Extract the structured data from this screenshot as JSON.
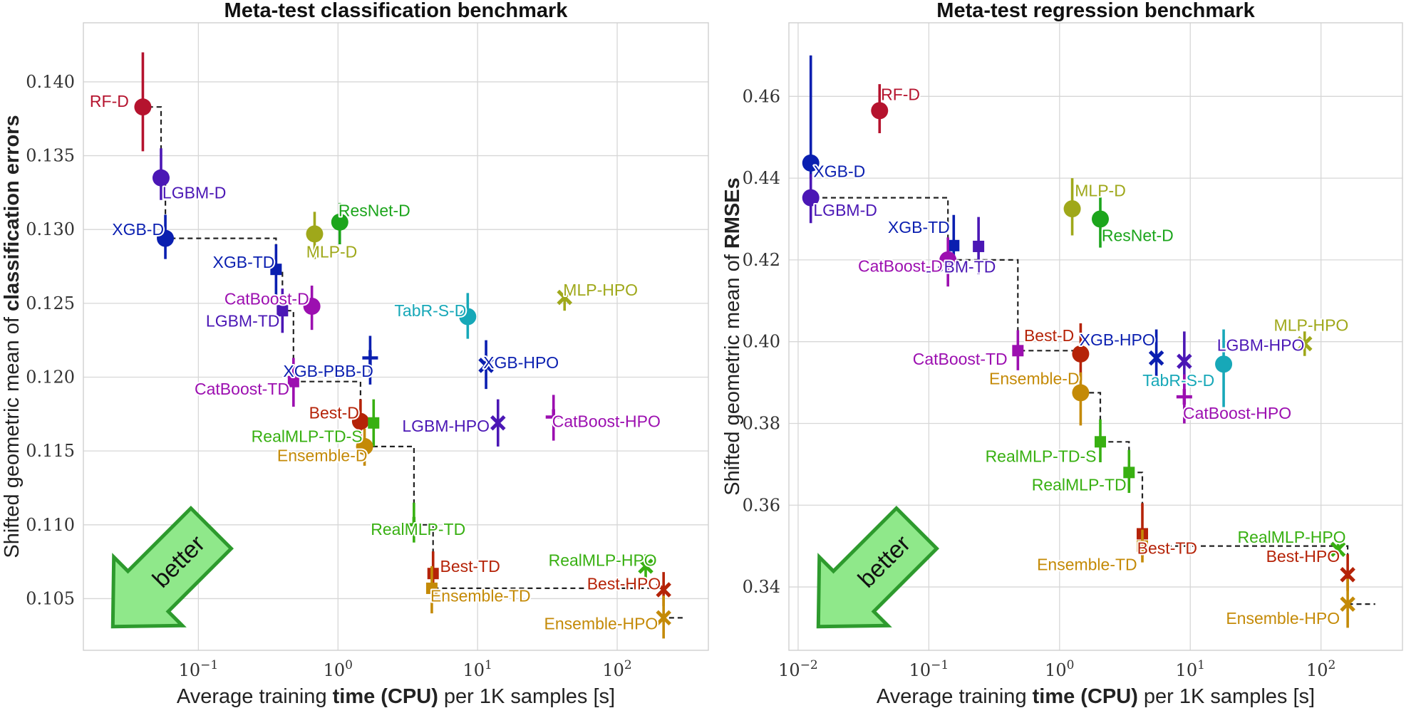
{
  "chart_data": [
    {
      "type": "scatter",
      "title": "Meta-test classification benchmark",
      "xlabel_parts": [
        "Average training ",
        "time (CPU)",
        " per 1K samples [s]"
      ],
      "ylabel_parts": [
        "Shifted geometric mean of ",
        "classification errors"
      ],
      "xscale": "log",
      "xlim": [
        0.015,
        450
      ],
      "ylim": [
        0.1015,
        0.144
      ],
      "xticks": [
        {
          "v": 0.1,
          "base": "10",
          "exp": "−1"
        },
        {
          "v": 1,
          "base": "10",
          "exp": "0"
        },
        {
          "v": 10,
          "base": "10",
          "exp": "1"
        },
        {
          "v": 100,
          "base": "10",
          "exp": "2"
        }
      ],
      "yticks": [
        {
          "v": 0.105,
          "label": "0.105"
        },
        {
          "v": 0.11,
          "label": "0.110"
        },
        {
          "v": 0.115,
          "label": "0.115"
        },
        {
          "v": 0.12,
          "label": "0.120"
        },
        {
          "v": 0.125,
          "label": "0.125"
        },
        {
          "v": 0.13,
          "label": "0.130"
        },
        {
          "v": 0.135,
          "label": "0.135"
        },
        {
          "v": 0.14,
          "label": "0.140"
        }
      ],
      "grid": true,
      "badge": "better",
      "points": [
        {
          "label": "RF-D",
          "x": 0.04,
          "y": 0.1383,
          "ylo": 0.1353,
          "yhi": 0.142,
          "marker": "circle",
          "color": "#b5132e",
          "la": "end",
          "lx": -0.1,
          "ly": 0.0004
        },
        {
          "label": "LGBM-D",
          "x": 0.054,
          "y": 0.1335,
          "ylo": 0.132,
          "yhi": 0.1355,
          "marker": "circle",
          "color": "#4b17b5",
          "la": "start",
          "lx": 0.01,
          "ly": -0.001
        },
        {
          "label": "XGB-D",
          "x": 0.058,
          "y": 0.1294,
          "ylo": 0.128,
          "yhi": 0.131,
          "marker": "circle",
          "color": "#0a1fb0",
          "la": "end",
          "lx": -0.01,
          "ly": 0.0006
        },
        {
          "label": "XGB-TD",
          "x": 0.36,
          "y": 0.1273,
          "ylo": 0.1255,
          "yhi": 0.129,
          "marker": "square",
          "color": "#0a1fb0",
          "la": "end",
          "lx": -0.01,
          "ly": 0.0005
        },
        {
          "label": "MLP-D",
          "x": 0.68,
          "y": 0.1297,
          "ylo": 0.128,
          "yhi": 0.1312,
          "marker": "circle",
          "color": "#9fa81a",
          "la": "start",
          "lx": -0.06,
          "ly": -0.0012
        },
        {
          "label": "ResNet-D",
          "x": 1.03,
          "y": 0.1305,
          "ylo": 0.129,
          "yhi": 0.1318,
          "marker": "circle",
          "color": "#1ca51c",
          "la": "start",
          "lx": -0.01,
          "ly": 0.0008
        },
        {
          "label": "CatBoost-D",
          "x": 0.65,
          "y": 0.1248,
          "ylo": 0.1232,
          "yhi": 0.1262,
          "marker": "circle",
          "color": "#9c0fb0",
          "la": "end",
          "lx": -0.02,
          "ly": 0.0005
        },
        {
          "label": "LGBM-TD",
          "x": 0.4,
          "y": 0.1245,
          "ylo": 0.123,
          "yhi": 0.126,
          "marker": "square",
          "color": "#4b17b5",
          "la": "end",
          "lx": -0.02,
          "ly": -0.0007
        },
        {
          "label": "TabR-S-D",
          "x": 8.5,
          "y": 0.1241,
          "ylo": 0.1226,
          "yhi": 0.1257,
          "marker": "circle",
          "color": "#17a8b8",
          "la": "end",
          "lx": -0.01,
          "ly": 0.0004
        },
        {
          "label": "MLP-HPO",
          "x": 42,
          "y": 0.1254,
          "ylo": 0.1245,
          "yhi": 0.1262,
          "marker": "x",
          "color": "#9fa81a",
          "la": "start",
          "lx": -0.01,
          "ly": 0.0005
        },
        {
          "label": "XGB-PBB-D",
          "x": 1.7,
          "y": 0.1213,
          "ylo": 0.1195,
          "yhi": 0.1228,
          "marker": "plus",
          "color": "#0a1fb0",
          "la": "middle",
          "lx": -0.3,
          "ly": -0.0009
        },
        {
          "label": "XGB-HPO",
          "x": 11.5,
          "y": 0.1208,
          "ylo": 0.1192,
          "yhi": 0.1225,
          "marker": "x",
          "color": "#0a1fb0",
          "la": "start",
          "lx": -0.02,
          "ly": 0.0002
        },
        {
          "label": "CatBoost-TD",
          "x": 0.48,
          "y": 0.1197,
          "ylo": 0.118,
          "yhi": 0.1213,
          "marker": "square",
          "color": "#9c0fb0",
          "la": "end",
          "lx": -0.03,
          "ly": -0.0005
        },
        {
          "label": "Best-D",
          "x": 1.45,
          "y": 0.117,
          "ylo": 0.1155,
          "yhi": 0.1185,
          "marker": "circle",
          "color": "#b52308",
          "la": "end",
          "lx": -0.01,
          "ly": 0.0006
        },
        {
          "label": "RealMLP-TD-S",
          "x": 1.8,
          "y": 0.1169,
          "ylo": 0.1153,
          "yhi": 0.1185,
          "marker": "square",
          "color": "#38b012",
          "la": "end",
          "lx": -0.08,
          "ly": -0.0009
        },
        {
          "label": "LGBM-HPO",
          "x": 14,
          "y": 0.1169,
          "ylo": 0.1153,
          "yhi": 0.1185,
          "marker": "x",
          "color": "#4b17b5",
          "la": "end",
          "lx": -0.06,
          "ly": -0.0002
        },
        {
          "label": "CatBoost-HPO",
          "x": 35,
          "y": 0.1173,
          "ylo": 0.1157,
          "yhi": 0.1188,
          "marker": "plus",
          "color": "#9c0fb0",
          "la": "start",
          "lx": -0.01,
          "ly": -0.0003
        },
        {
          "label": "Ensemble-D",
          "x": 1.55,
          "y": 0.1153,
          "ylo": 0.114,
          "yhi": 0.1165,
          "marker": "circle",
          "color": "#c48a07",
          "la": "end",
          "lx": 0.02,
          "ly": -0.0006
        },
        {
          "label": "RealMLP-TD",
          "x": 3.5,
          "y": 0.11,
          "ylo": 0.1088,
          "yhi": 0.1115,
          "marker": "plus",
          "color": "#38b012",
          "la": "middle",
          "lx": 0.03,
          "ly": -0.0003
        },
        {
          "label": "RealMLP-HPO",
          "x": 160,
          "y": 0.1072,
          "ylo": 0.1064,
          "yhi": 0.108,
          "marker": "x",
          "color": "#38b012",
          "la": "end",
          "lx": 0.08,
          "ly": 0.0004
        },
        {
          "label": "Best-TD",
          "x": 4.8,
          "y": 0.1067,
          "ylo": 0.1055,
          "yhi": 0.1082,
          "marker": "square",
          "color": "#b52308",
          "la": "start",
          "lx": 0.05,
          "ly": 0.0005
        },
        {
          "label": "Best-HPO",
          "x": 215,
          "y": 0.1056,
          "ylo": 0.1045,
          "yhi": 0.1068,
          "marker": "x",
          "color": "#b52308",
          "la": "end",
          "lx": -0.02,
          "ly": 0.0004
        },
        {
          "label": "Ensemble-TD",
          "x": 4.7,
          "y": 0.1057,
          "ylo": 0.104,
          "yhi": 0.1072,
          "marker": "square",
          "color": "#c48a07",
          "la": "start",
          "lx": -0.01,
          "ly": -0.0005
        },
        {
          "label": "Ensemble-HPO",
          "x": 215,
          "y": 0.1037,
          "ylo": 0.1023,
          "yhi": 0.1052,
          "marker": "x",
          "color": "#c48a07",
          "la": "end",
          "lx": -0.04,
          "ly": -0.0004
        }
      ],
      "frontier": [
        [
          0.04,
          0.142
        ],
        [
          0.04,
          0.1383
        ],
        [
          0.054,
          0.1383
        ],
        [
          0.054,
          0.1335
        ],
        [
          0.058,
          0.1335
        ],
        [
          0.058,
          0.1294
        ],
        [
          0.36,
          0.1294
        ],
        [
          0.36,
          0.1273
        ],
        [
          0.4,
          0.1273
        ],
        [
          0.4,
          0.1245
        ],
        [
          0.48,
          0.1245
        ],
        [
          0.48,
          0.1197
        ],
        [
          1.45,
          0.1197
        ],
        [
          1.45,
          0.117
        ],
        [
          1.55,
          0.117
        ],
        [
          1.55,
          0.1153
        ],
        [
          3.5,
          0.1153
        ],
        [
          3.5,
          0.11
        ],
        [
          4.8,
          0.11
        ],
        [
          4.8,
          0.1067
        ],
        [
          4.7,
          0.1067
        ],
        [
          4.7,
          0.1057
        ],
        [
          215,
          0.1057
        ],
        [
          215,
          0.1037
        ],
        [
          300,
          0.1037
        ]
      ]
    },
    {
      "type": "scatter",
      "title": "Meta-test regression benchmark",
      "xlabel_parts": [
        "Average training ",
        "time (CPU)",
        " per 1K samples [s]"
      ],
      "ylabel_parts": [
        "Shifted geometric mean of ",
        "RMSEs"
      ],
      "xscale": "log",
      "xlim": [
        0.0085,
        420
      ],
      "ylim": [
        0.3245,
        0.478
      ],
      "xticks": [
        {
          "v": 0.01,
          "base": "10",
          "exp": "−2"
        },
        {
          "v": 0.1,
          "base": "10",
          "exp": "−1"
        },
        {
          "v": 1,
          "base": "10",
          "exp": "0"
        },
        {
          "v": 10,
          "base": "10",
          "exp": "1"
        },
        {
          "v": 100,
          "base": "10",
          "exp": "2"
        }
      ],
      "yticks": [
        {
          "v": 0.34,
          "label": "0.34"
        },
        {
          "v": 0.36,
          "label": "0.36"
        },
        {
          "v": 0.38,
          "label": "0.38"
        },
        {
          "v": 0.4,
          "label": "0.40"
        },
        {
          "v": 0.42,
          "label": "0.42"
        },
        {
          "v": 0.44,
          "label": "0.44"
        },
        {
          "v": 0.46,
          "label": "0.46"
        }
      ],
      "grid": true,
      "badge": "better",
      "points": [
        {
          "label": "RF-D",
          "x": 0.042,
          "y": 0.4565,
          "ylo": 0.451,
          "yhi": 0.463,
          "marker": "circle",
          "color": "#b5132e",
          "la": "start",
          "lx": 0.01,
          "ly": 0.004
        },
        {
          "label": "XGB-D",
          "x": 0.0125,
          "y": 0.4437,
          "ylo": 0.44,
          "yhi": 0.47,
          "marker": "circle",
          "color": "#0a1fb0",
          "la": "start",
          "lx": 0.02,
          "ly": -0.002
        },
        {
          "label": "LGBM-D",
          "x": 0.0125,
          "y": 0.4352,
          "ylo": 0.429,
          "yhi": 0.441,
          "marker": "circle",
          "color": "#4b17b5",
          "la": "start",
          "lx": 0.02,
          "ly": -0.003
        },
        {
          "label": "MLP-D",
          "x": 1.25,
          "y": 0.4325,
          "ylo": 0.426,
          "yhi": 0.44,
          "marker": "circle",
          "color": "#9fa81a",
          "la": "start",
          "lx": 0.02,
          "ly": 0.0045
        },
        {
          "label": "ResNet-D",
          "x": 2.05,
          "y": 0.43,
          "ylo": 0.423,
          "yhi": 0.4355,
          "marker": "circle",
          "color": "#1ca51c",
          "la": "start",
          "lx": 0.01,
          "ly": -0.004
        },
        {
          "label": "XGB-TD",
          "x": 0.155,
          "y": 0.4235,
          "ylo": 0.419,
          "yhi": 0.431,
          "marker": "square",
          "color": "#0a1fb0",
          "la": "end",
          "lx": -0.03,
          "ly": 0.0045
        },
        {
          "label": "LGBM-TD",
          "x": 0.24,
          "y": 0.4233,
          "ylo": 0.4165,
          "yhi": 0.4305,
          "marker": "square",
          "color": "#4b17b5",
          "la": "middle",
          "lx": -0.15,
          "ly": -0.005
        },
        {
          "label": "CatBoost-D",
          "x": 0.14,
          "y": 0.42,
          "ylo": 0.4135,
          "yhi": 0.4255,
          "marker": "circle",
          "color": "#9c0fb0",
          "la": "end",
          "lx": -0.04,
          "ly": -0.0015
        },
        {
          "label": "Best-D",
          "x": 1.45,
          "y": 0.397,
          "ylo": 0.3905,
          "yhi": 0.4045,
          "marker": "circle",
          "color": "#b52308",
          "la": "end",
          "lx": -0.05,
          "ly": 0.0045
        },
        {
          "label": "XGB-HPO",
          "x": 5.5,
          "y": 0.396,
          "ylo": 0.389,
          "yhi": 0.403,
          "marker": "x",
          "color": "#0a1fb0",
          "la": "end",
          "lx": -0.01,
          "ly": 0.0045
        },
        {
          "label": "CatBoost-TD",
          "x": 0.48,
          "y": 0.3978,
          "ylo": 0.393,
          "yhi": 0.4028,
          "marker": "square",
          "color": "#9c0fb0",
          "la": "end",
          "lx": -0.08,
          "ly": -0.002
        },
        {
          "label": "MLP-HPO",
          "x": 75,
          "y": 0.3995,
          "ylo": 0.3965,
          "yhi": 0.4025,
          "marker": "x",
          "color": "#9fa81a",
          "la": "middle",
          "lx": 0.05,
          "ly": 0.0045
        },
        {
          "label": "LGBM-HPO",
          "x": 9.0,
          "y": 0.3952,
          "ylo": 0.388,
          "yhi": 0.4025,
          "marker": "x",
          "color": "#4b17b5",
          "la": "start",
          "lx": 0.25,
          "ly": 0.004
        },
        {
          "label": "TabR-S-D",
          "x": 18,
          "y": 0.3945,
          "ylo": 0.384,
          "yhi": 0.403,
          "marker": "circle",
          "color": "#17a8b8",
          "la": "end",
          "lx": -0.07,
          "ly": -0.004
        },
        {
          "label": "CatBoost-HPO",
          "x": 9.0,
          "y": 0.3865,
          "ylo": 0.38,
          "yhi": 0.392,
          "marker": "plus",
          "color": "#9c0fb0",
          "la": "start",
          "lx": -0.01,
          "ly": -0.004
        },
        {
          "label": "Ensemble-D",
          "x": 1.45,
          "y": 0.3875,
          "ylo": 0.3795,
          "yhi": 0.3925,
          "marker": "circle",
          "color": "#c48a07",
          "la": "end",
          "lx": -0.01,
          "ly": 0.0035
        },
        {
          "label": "RealMLP-TD-S",
          "x": 2.05,
          "y": 0.3755,
          "ylo": 0.3705,
          "yhi": 0.381,
          "marker": "square",
          "color": "#38b012",
          "la": "end",
          "lx": -0.03,
          "ly": -0.0035
        },
        {
          "label": "RealMLP-TD",
          "x": 3.4,
          "y": 0.368,
          "ylo": 0.363,
          "yhi": 0.3735,
          "marker": "square",
          "color": "#38b012",
          "la": "end",
          "lx": -0.02,
          "ly": -0.003
        },
        {
          "label": "Best-TD",
          "x": 4.3,
          "y": 0.353,
          "ylo": 0.3475,
          "yhi": 0.3605,
          "marker": "square",
          "color": "#b52308",
          "la": "start",
          "lx": -0.04,
          "ly": -0.0035
        },
        {
          "label": "RealMLP-HPO",
          "x": 135,
          "y": 0.3492,
          "ylo": 0.348,
          "yhi": 0.3505,
          "marker": "x",
          "color": "#38b012",
          "la": "end",
          "lx": 0.06,
          "ly": 0.003
        },
        {
          "label": "Ensemble-TD",
          "x": 4.3,
          "y": 0.35,
          "ylo": 0.346,
          "yhi": 0.354,
          "marker": "square",
          "color": "#c48a07",
          "la": "end",
          "lx": -0.04,
          "ly": -0.0045
        },
        {
          "label": "Best-HPO",
          "x": 160,
          "y": 0.343,
          "ylo": 0.339,
          "yhi": 0.348,
          "marker": "x",
          "color": "#b52308",
          "la": "end",
          "lx": -0.06,
          "ly": 0.0045
        },
        {
          "label": "Ensemble-HPO",
          "x": 160,
          "y": 0.3358,
          "ylo": 0.33,
          "yhi": 0.342,
          "marker": "x",
          "color": "#c48a07",
          "la": "end",
          "lx": -0.06,
          "ly": -0.0035
        }
      ],
      "frontier": [
        [
          0.0125,
          0.47
        ],
        [
          0.0125,
          0.4352
        ],
        [
          0.14,
          0.4352
        ],
        [
          0.14,
          0.42
        ],
        [
          0.48,
          0.42
        ],
        [
          0.48,
          0.3978
        ],
        [
          1.45,
          0.3978
        ],
        [
          1.45,
          0.3875
        ],
        [
          2.05,
          0.3875
        ],
        [
          2.05,
          0.3755
        ],
        [
          3.4,
          0.3755
        ],
        [
          3.4,
          0.368
        ],
        [
          4.3,
          0.368
        ],
        [
          4.3,
          0.35
        ],
        [
          160,
          0.35
        ],
        [
          160,
          0.3358
        ],
        [
          260,
          0.3358
        ]
      ]
    }
  ]
}
